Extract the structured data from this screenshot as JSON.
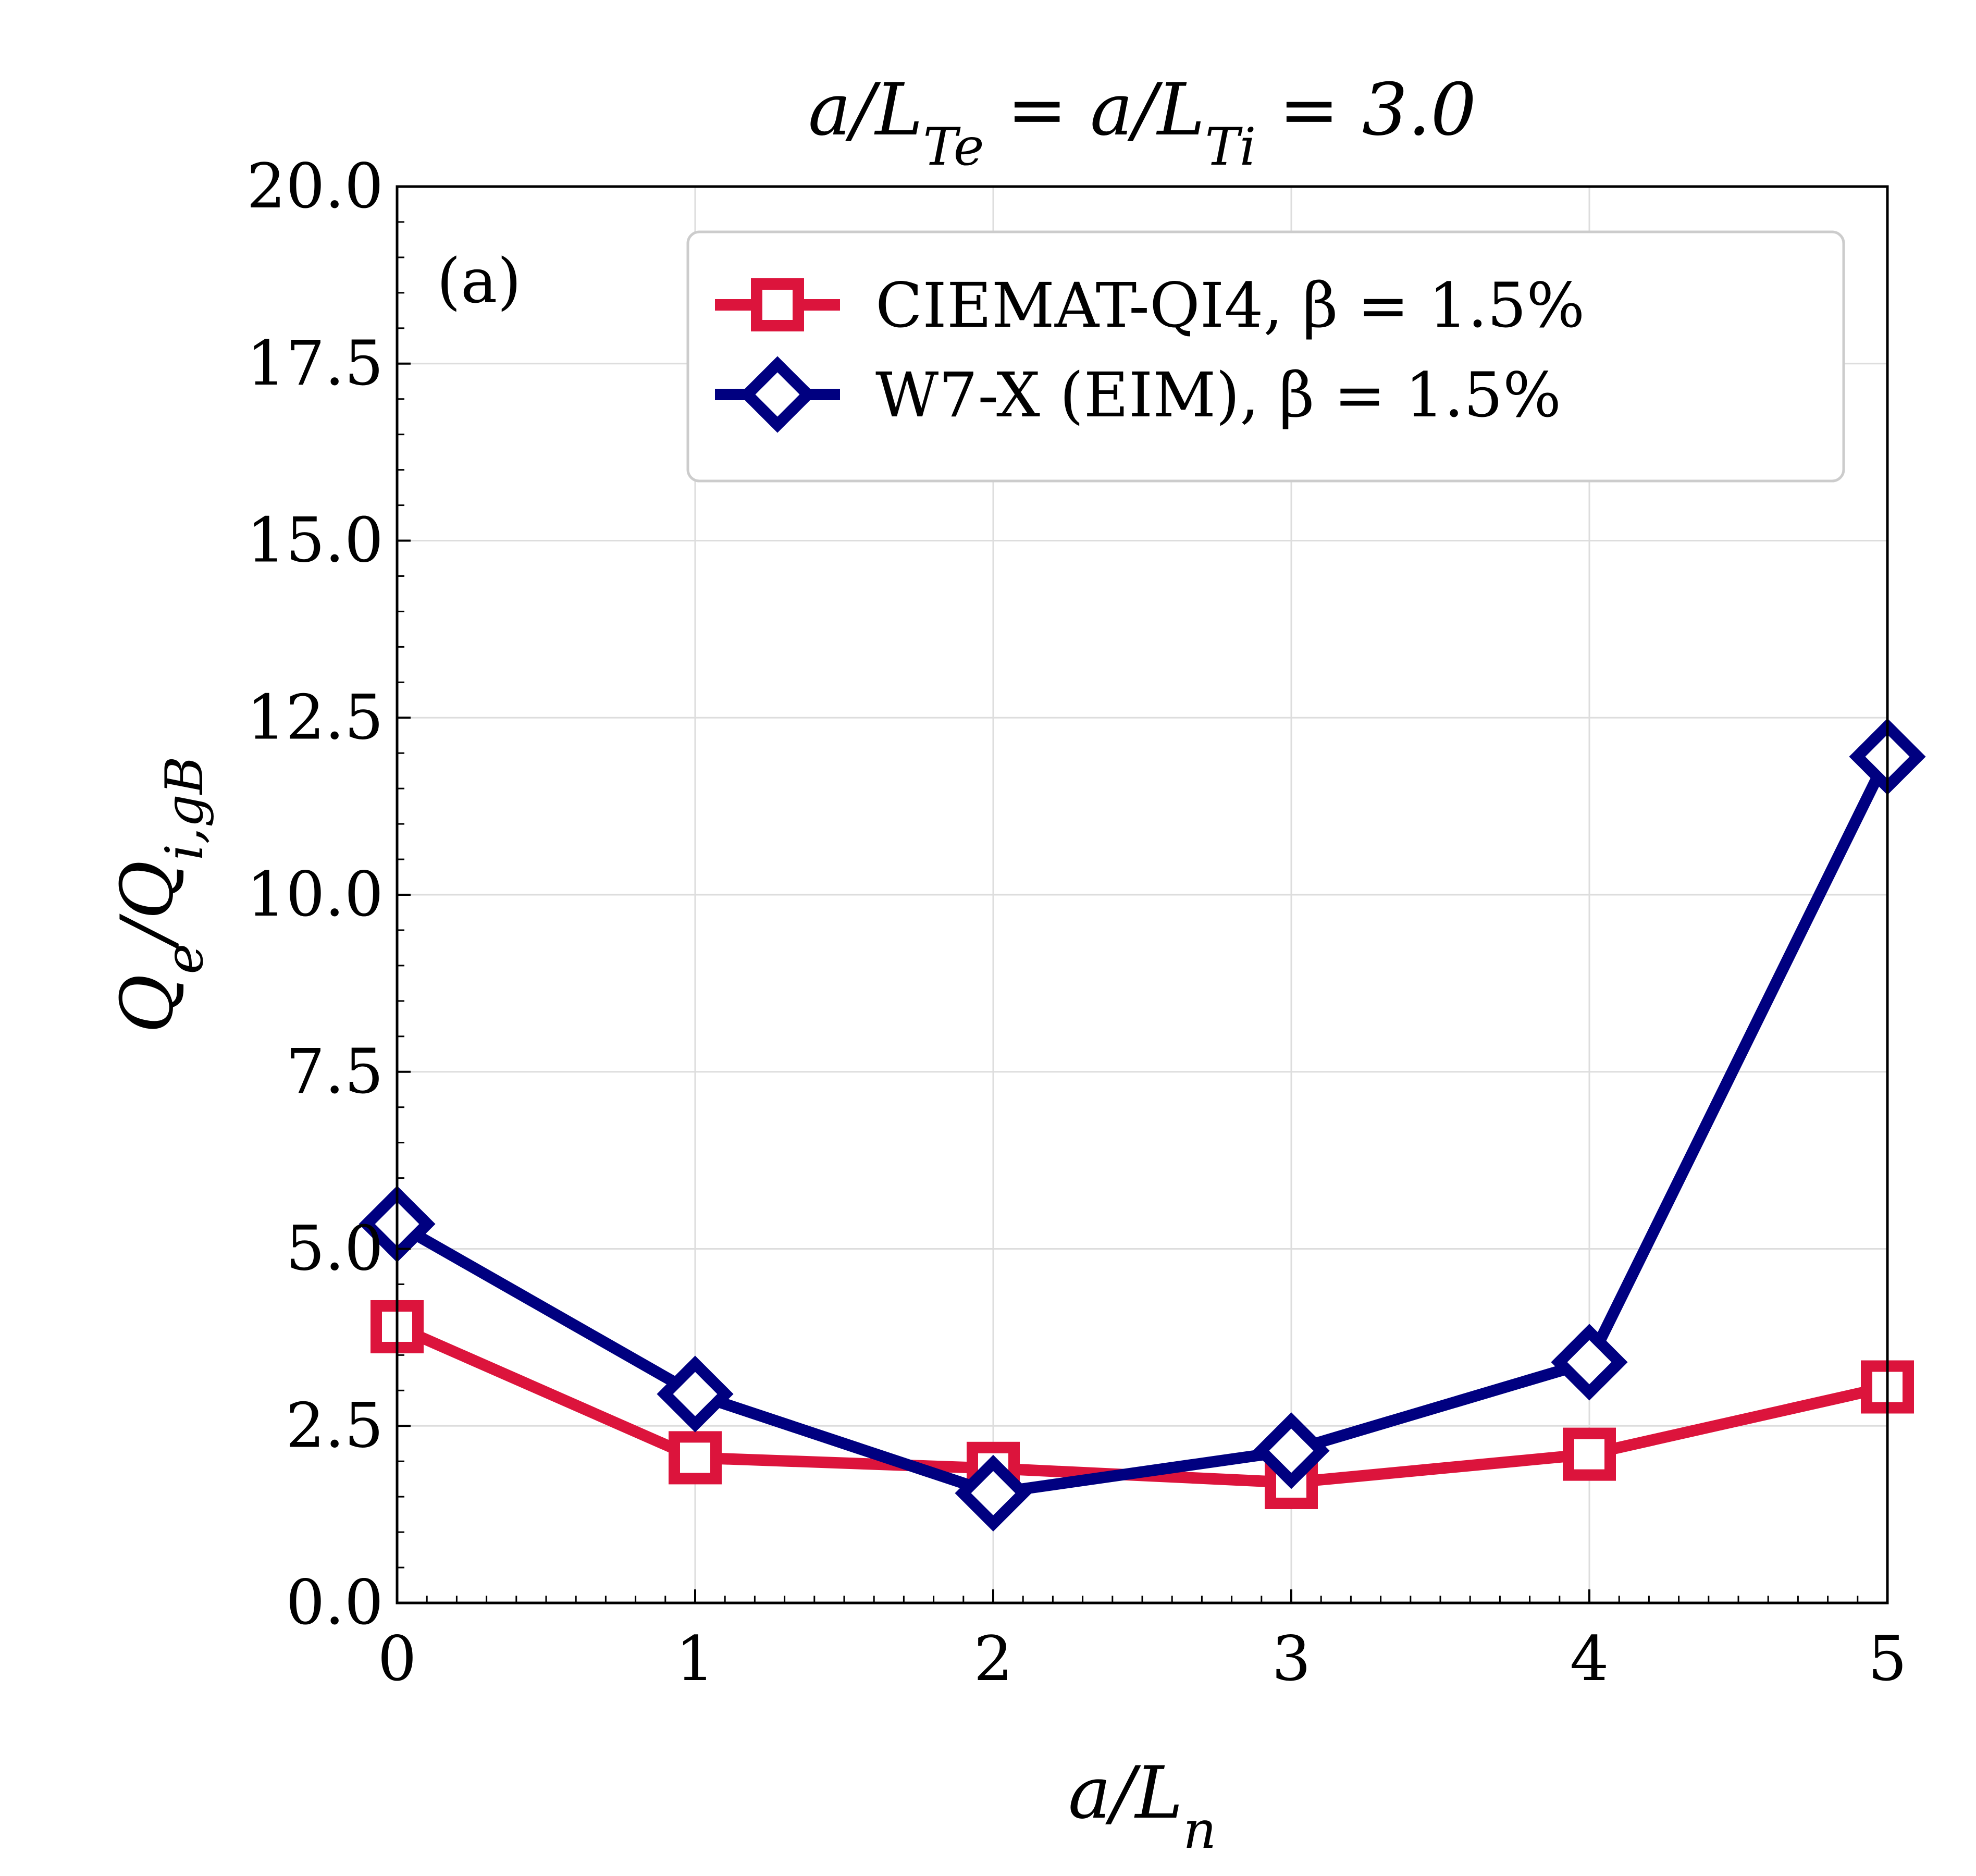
{
  "chart_data": {
    "type": "line",
    "title": "a/L_Te = a/L_Ti = 3.0",
    "xlabel": "a/L_n",
    "ylabel": "Q_e/Q_i,gB",
    "panel_label": "(a)",
    "xlim": [
      0,
      5
    ],
    "ylim": [
      0,
      20
    ],
    "xticks": [
      "0",
      "1",
      "2",
      "3",
      "4",
      "5"
    ],
    "yticks": [
      "0.0",
      "2.5",
      "5.0",
      "7.5",
      "10.0",
      "12.5",
      "15.0",
      "17.5",
      "20.0"
    ],
    "grid": true,
    "legend_position": "top-right",
    "series": [
      {
        "name": "CIEMAT-QI4, β = 1.5%",
        "color": "#dc143c",
        "marker": "square",
        "x": [
          0,
          1,
          2,
          3,
          4,
          5
        ],
        "y": [
          3.9,
          2.05,
          1.9,
          1.7,
          2.1,
          3.05
        ]
      },
      {
        "name": "W7-X (EIM), β = 1.5%",
        "color": "#000080",
        "marker": "diamond",
        "x": [
          0,
          1,
          2,
          3,
          4,
          5
        ],
        "y": [
          5.35,
          2.95,
          1.55,
          2.15,
          3.4,
          11.95
        ]
      }
    ]
  }
}
